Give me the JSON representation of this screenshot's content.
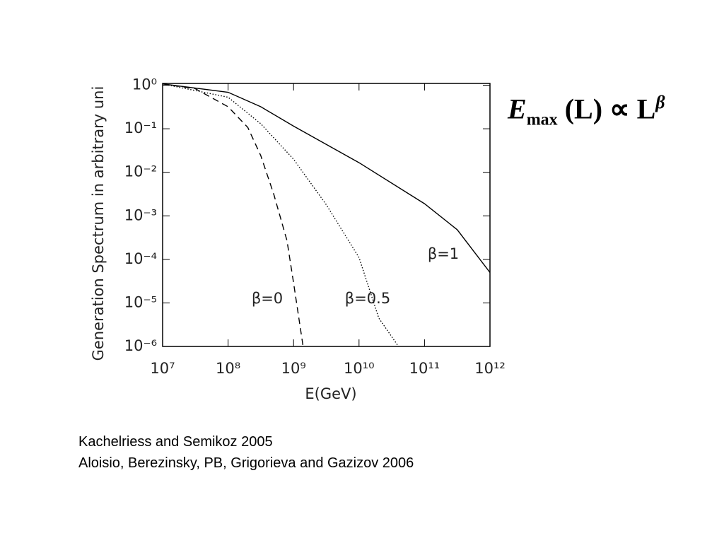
{
  "chart_data": {
    "type": "line",
    "x_label": "E(GeV)",
    "y_label": "Generation Spectrum in arbitrary uni",
    "log_x": true,
    "log_y": true,
    "xlim": [
      10000000,
      1000000000000
    ],
    "ylim": [
      1e-06,
      1.1
    ],
    "xticks": [
      {
        "value": 10000000,
        "label": "10⁷"
      },
      {
        "value": 100000000,
        "label": "10⁸"
      },
      {
        "value": 1000000000,
        "label": "10⁹"
      },
      {
        "value": 10000000000,
        "label": "10¹⁰"
      },
      {
        "value": 100000000000,
        "label": "10¹¹"
      },
      {
        "value": 1000000000000,
        "label": "10¹²"
      }
    ],
    "yticks": [
      {
        "value": 1,
        "label": "10⁰"
      },
      {
        "value": 0.1,
        "label": "10⁻¹"
      },
      {
        "value": 0.01,
        "label": "10⁻²"
      },
      {
        "value": 0.001,
        "label": "10⁻³"
      },
      {
        "value": 0.0001,
        "label": "10⁻⁴"
      },
      {
        "value": 1e-05,
        "label": "10⁻⁵"
      },
      {
        "value": 1e-06,
        "label": "10⁻⁶"
      }
    ],
    "series": [
      {
        "name": "β=1",
        "color": "#000000",
        "dash": "solid",
        "x": [
          10000000,
          100000000,
          316000000,
          1000000000,
          10000000000,
          100000000000,
          316000000000,
          1000000000000
        ],
        "values": [
          1.07,
          0.69,
          0.32,
          0.115,
          0.0166,
          0.0019,
          0.00048,
          5e-05
        ]
      },
      {
        "name": "β=0.5",
        "color": "#000000",
        "dash": "dotted",
        "x": [
          10000000,
          100000000,
          316000000,
          1000000000,
          3160000000,
          10000000000,
          20000000000,
          40000000000
        ],
        "values": [
          1.07,
          0.53,
          0.13,
          0.02,
          0.0018,
          0.00011,
          4.5e-06,
          1e-06
        ]
      },
      {
        "name": "β=0",
        "color": "#000000",
        "dash": "dashed",
        "x": [
          10000000,
          31600000,
          100000000,
          200000000,
          316000000,
          500000000,
          794000000,
          1000000000,
          1400000000
        ],
        "values": [
          1.07,
          0.83,
          0.32,
          0.107,
          0.024,
          0.0031,
          0.00027,
          2.9e-05,
          1e-06
        ]
      }
    ]
  },
  "formula": {
    "base": "E",
    "subscript": "max",
    "middle": "(L) ∝ L",
    "superscript": "β"
  },
  "citations": [
    "Kachelriess and Semikoz 2005",
    "Aloisio, Berezinsky, PB, Grigorieva and Gazizov 2006"
  ]
}
